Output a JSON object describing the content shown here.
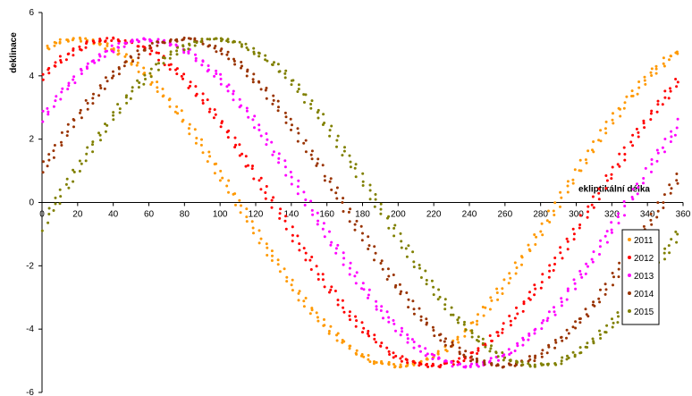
{
  "chart_data": {
    "type": "scatter",
    "xlabel": "ekliptikální délka",
    "ylabel": "deklinace",
    "xlim": [
      0,
      360
    ],
    "ylim": [
      -6,
      6
    ],
    "x_ticks": [
      "0",
      "20",
      "40",
      "60",
      "80",
      "100",
      "120",
      "140",
      "160",
      "180",
      "200",
      "220",
      "240",
      "260",
      "280",
      "300",
      "320",
      "340",
      "360"
    ],
    "y_ticks": [
      "6",
      "4",
      "2",
      "0",
      "-2",
      "-4",
      "-6"
    ],
    "legend_position": "right",
    "grid": false,
    "series": [
      {
        "name": "2011",
        "color": "#ff9900",
        "amplitude": 5.15,
        "phase": 20
      },
      {
        "name": "2012",
        "color": "#ff0000",
        "amplitude": 5.15,
        "phase": 39.5
      },
      {
        "name": "2013",
        "color": "#ff00ff",
        "amplitude": 5.15,
        "phase": 59
      },
      {
        "name": "2014",
        "color": "#993300",
        "amplitude": 5.15,
        "phase": 78.5
      },
      {
        "name": "2015",
        "color": "#808000",
        "amplitude": 5.15,
        "phase": 98
      }
    ]
  }
}
